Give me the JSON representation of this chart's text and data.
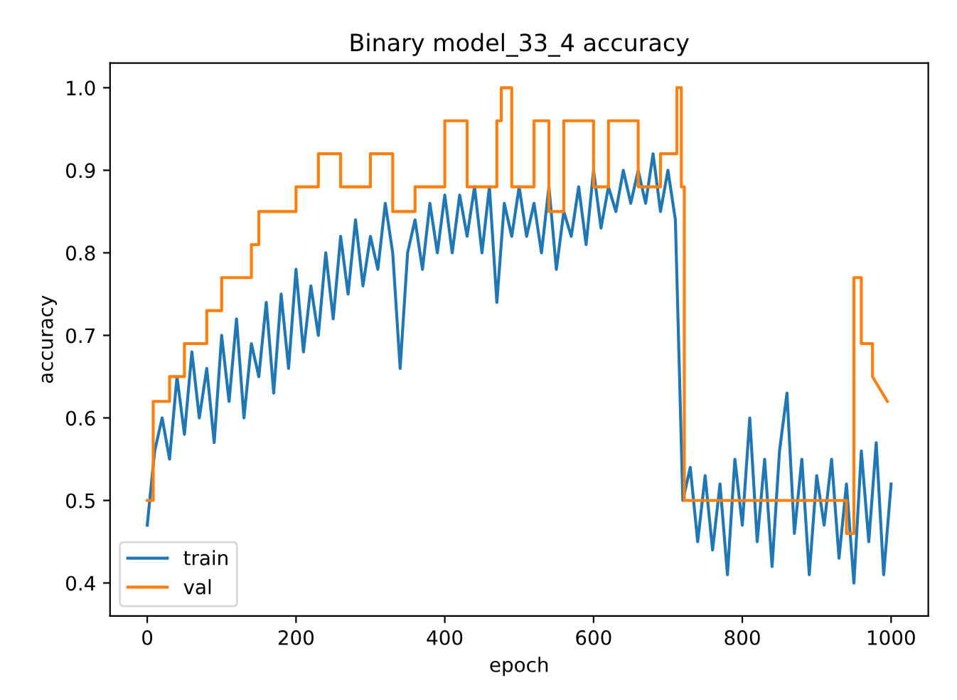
{
  "chart_data": {
    "type": "line",
    "title": "Binary model_33_4 accuracy",
    "xlabel": "epoch",
    "ylabel": "accuracy",
    "xlim": [
      -50,
      1050
    ],
    "ylim": [
      0.36,
      1.03
    ],
    "xticks": [
      0,
      200,
      400,
      600,
      800,
      1000
    ],
    "yticks": [
      0.4,
      0.5,
      0.6,
      0.7,
      0.8,
      0.9,
      {
        "value": 1.0,
        "label": "1.0"
      }
    ],
    "legend": "bottom left",
    "grid": false,
    "series": [
      {
        "name": "train",
        "color": "#1f77b4",
        "x": [
          0,
          10,
          20,
          30,
          40,
          50,
          60,
          70,
          80,
          90,
          100,
          110,
          120,
          130,
          140,
          150,
          160,
          170,
          180,
          190,
          200,
          210,
          220,
          230,
          240,
          250,
          260,
          270,
          280,
          290,
          300,
          310,
          320,
          330,
          340,
          350,
          360,
          370,
          380,
          390,
          400,
          410,
          420,
          430,
          440,
          450,
          460,
          470,
          480,
          490,
          500,
          510,
          520,
          530,
          540,
          550,
          560,
          570,
          580,
          590,
          600,
          610,
          620,
          630,
          640,
          650,
          660,
          670,
          680,
          690,
          700,
          710,
          720,
          730,
          740,
          750,
          760,
          770,
          780,
          790,
          800,
          810,
          820,
          830,
          840,
          850,
          860,
          870,
          880,
          890,
          900,
          910,
          920,
          930,
          940,
          950,
          960,
          970,
          980,
          990,
          1000
        ],
        "values": [
          0.47,
          0.56,
          0.6,
          0.55,
          0.65,
          0.58,
          0.68,
          0.6,
          0.66,
          0.57,
          0.7,
          0.62,
          0.72,
          0.6,
          0.69,
          0.65,
          0.74,
          0.63,
          0.75,
          0.66,
          0.78,
          0.68,
          0.76,
          0.7,
          0.8,
          0.72,
          0.82,
          0.75,
          0.84,
          0.76,
          0.82,
          0.78,
          0.86,
          0.8,
          0.66,
          0.8,
          0.84,
          0.78,
          0.86,
          0.8,
          0.87,
          0.8,
          0.87,
          0.82,
          0.88,
          0.8,
          0.88,
          0.74,
          0.86,
          0.82,
          0.88,
          0.82,
          0.86,
          0.8,
          0.88,
          0.78,
          0.85,
          0.82,
          0.88,
          0.81,
          0.9,
          0.83,
          0.88,
          0.85,
          0.9,
          0.86,
          0.9,
          0.86,
          0.92,
          0.85,
          0.9,
          0.84,
          0.5,
          0.54,
          0.45,
          0.53,
          0.44,
          0.52,
          0.41,
          0.55,
          0.47,
          0.6,
          0.45,
          0.55,
          0.42,
          0.56,
          0.63,
          0.46,
          0.55,
          0.41,
          0.53,
          0.47,
          0.55,
          0.43,
          0.52,
          0.4,
          0.56,
          0.45,
          0.57,
          0.41,
          0.52
        ]
      },
      {
        "name": "val",
        "color": "#ff7f0e",
        "x": [
          0,
          8,
          8,
          30,
          30,
          50,
          50,
          80,
          80,
          100,
          100,
          140,
          140,
          150,
          150,
          200,
          200,
          230,
          230,
          260,
          260,
          300,
          300,
          330,
          330,
          360,
          360,
          400,
          400,
          430,
          430,
          470,
          470,
          476,
          476,
          490,
          490,
          520,
          520,
          540,
          540,
          560,
          560,
          600,
          600,
          620,
          620,
          660,
          660,
          690,
          690,
          712,
          712,
          718,
          718,
          722,
          722,
          940,
          940,
          950,
          950,
          960,
          960,
          975,
          975,
          995
        ],
        "values": [
          0.5,
          0.5,
          0.62,
          0.62,
          0.65,
          0.65,
          0.69,
          0.69,
          0.73,
          0.73,
          0.77,
          0.77,
          0.81,
          0.81,
          0.85,
          0.85,
          0.88,
          0.88,
          0.92,
          0.92,
          0.88,
          0.88,
          0.92,
          0.92,
          0.85,
          0.85,
          0.88,
          0.88,
          0.96,
          0.96,
          0.88,
          0.88,
          0.96,
          0.96,
          1.0,
          1.0,
          0.88,
          0.88,
          0.96,
          0.96,
          0.85,
          0.85,
          0.96,
          0.96,
          0.88,
          0.88,
          0.96,
          0.96,
          0.88,
          0.88,
          0.92,
          0.92,
          1.0,
          1.0,
          0.88,
          0.88,
          0.5,
          0.5,
          0.46,
          0.46,
          0.77,
          0.77,
          0.69,
          0.69,
          0.65,
          0.62
        ]
      }
    ]
  }
}
